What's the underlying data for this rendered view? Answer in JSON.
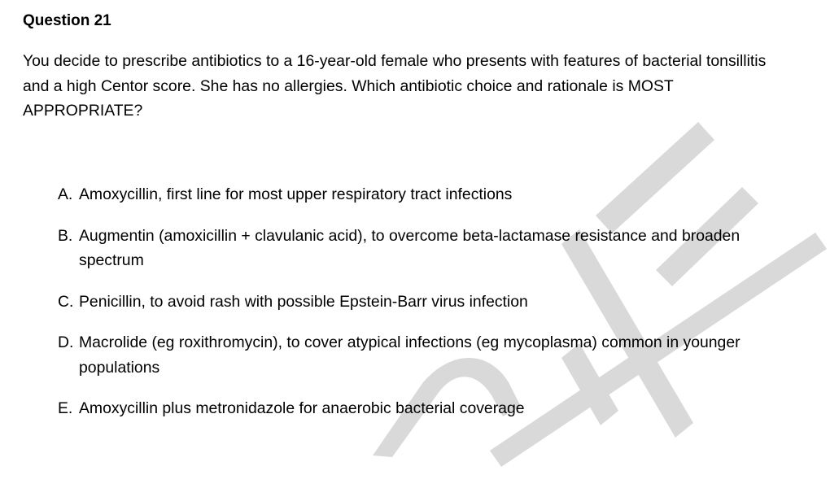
{
  "watermark": {
    "color": "#d9d9d9"
  },
  "question": {
    "title": "Question 21",
    "stem": "You decide to prescribe antibiotics to a 16-year-old female who presents with features of bacterial tonsillitis and a high Centor score.  She has no allergies. Which antibiotic choice and rationale is MOST APPROPRIATE?",
    "options": [
      {
        "letter": "A.",
        "text": "Amoxycillin, first line for most upper respiratory tract infections"
      },
      {
        "letter": "B.",
        "text": "Augmentin (amoxicillin + clavulanic acid), to overcome beta-lactamase resistance and broaden spectrum"
      },
      {
        "letter": "C.",
        "text": "Penicillin, to avoid rash with possible Epstein-Barr virus infection"
      },
      {
        "letter": "D.",
        "text": "Macrolide (eg roxithromycin), to cover atypical infections (eg mycoplasma) common in younger populations"
      },
      {
        "letter": "E.",
        "text": "Amoxycillin plus metronidazole for anaerobic bacterial coverage"
      }
    ]
  }
}
